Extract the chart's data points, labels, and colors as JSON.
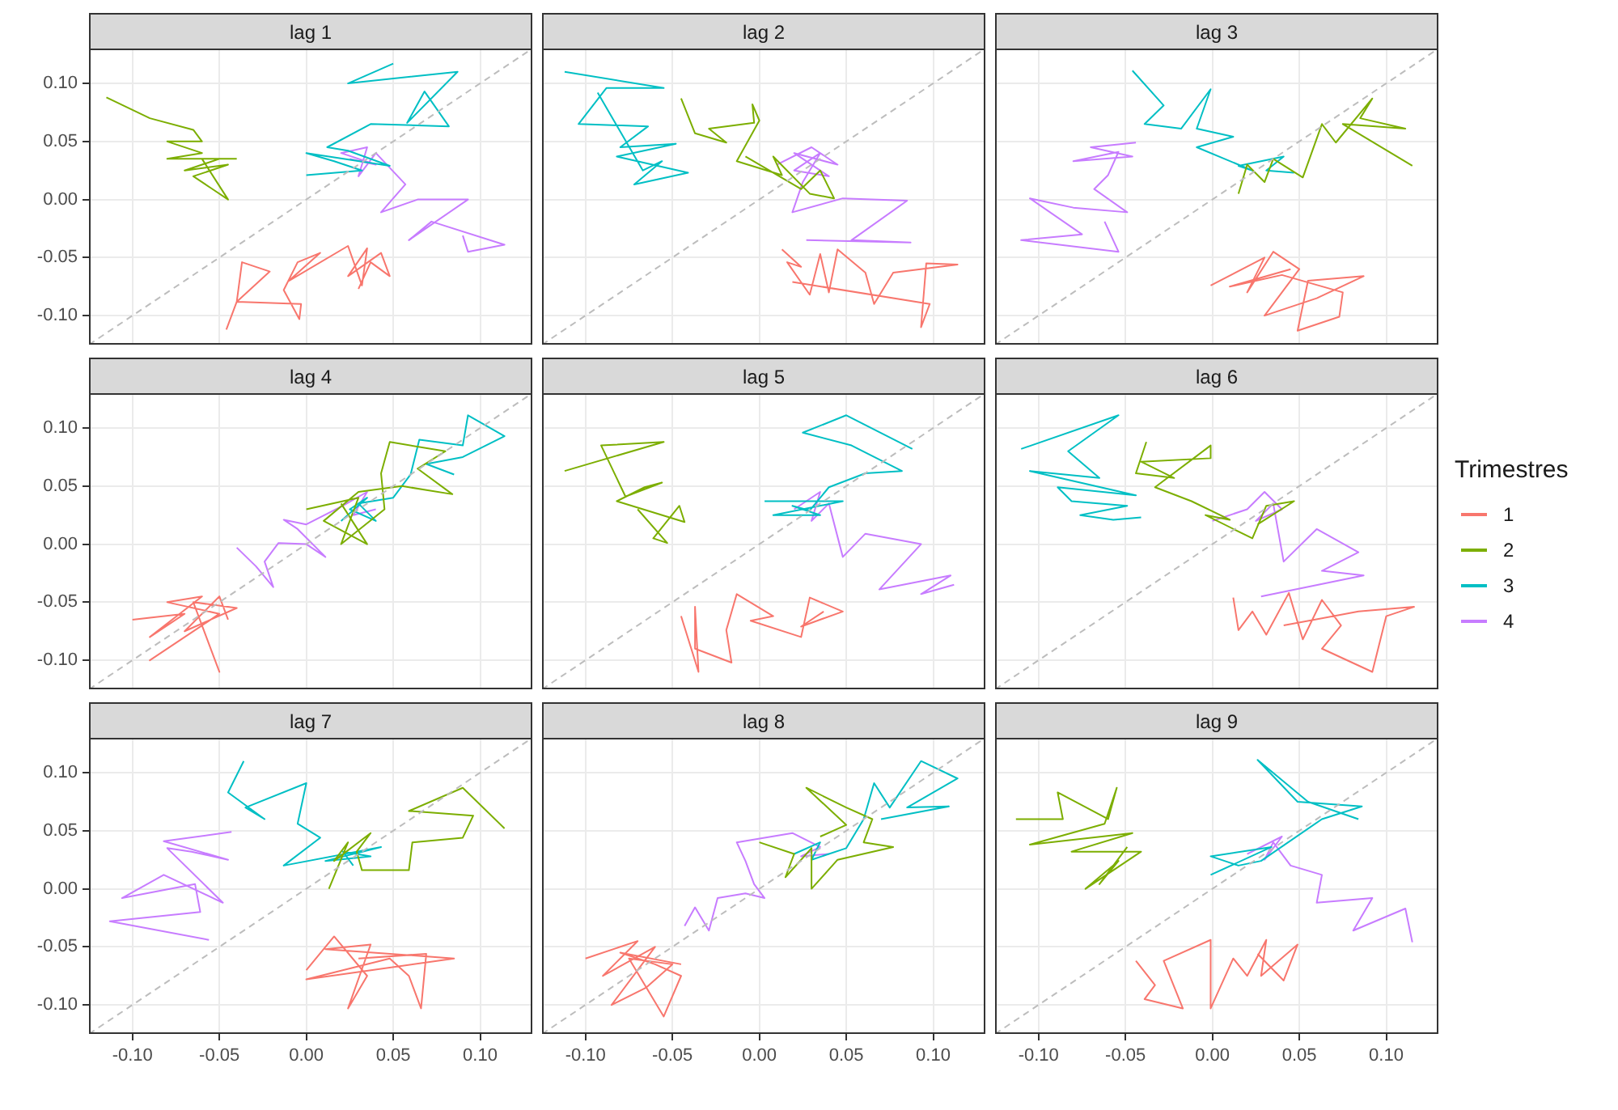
{
  "chart_data": [
    {
      "type": "line",
      "title": "lag 1",
      "xlim": [
        -0.125,
        0.13
      ],
      "ylim": [
        -0.125,
        0.13
      ],
      "xticks": [
        {
          "value": -0.1,
          "label": null
        },
        {
          "value": -0.05,
          "label": null
        },
        {
          "value": 0,
          "label": null
        },
        {
          "value": 0.05,
          "label": null
        },
        {
          "value": 0.1,
          "label": null
        }
      ],
      "yticks": [
        {
          "value": -0.1,
          "label": "-0.10"
        },
        {
          "value": -0.05,
          "label": "-0.05"
        },
        {
          "value": 0,
          "label": "0.00"
        },
        {
          "value": 0.05,
          "label": "0.05"
        },
        {
          "value": 0.1,
          "label": "0.10"
        }
      ],
      "grid": true,
      "tick_labels": "y",
      "series": [
        {
          "color": "#bdbdbd",
          "line_style": "dashed",
          "x": [
            -0.125,
            0.13
          ],
          "values": [
            -0.125,
            0.13
          ]
        },
        {
          "color": "#f8766d",
          "x": [
            -0.046,
            -0.04,
            -0.037,
            -0.021,
            -0.04,
            -0.003,
            -0.004,
            -0.013,
            -0.005,
            0.008,
            -0.01,
            0.024,
            0.032,
            0.035,
            0.024,
            0.043,
            0.048,
            0.037,
            0.03
          ],
          "values": [
            -0.112,
            -0.088,
            -0.054,
            -0.062,
            -0.088,
            -0.09,
            -0.103,
            -0.078,
            -0.054,
            -0.046,
            -0.07,
            -0.04,
            -0.074,
            -0.042,
            -0.066,
            -0.046,
            -0.066,
            -0.054,
            -0.077
          ]
        },
        {
          "color": "#7cae00",
          "x": [
            -0.115,
            -0.09,
            -0.065,
            -0.06,
            -0.08,
            -0.06,
            -0.08,
            -0.05,
            -0.07,
            -0.045,
            -0.065,
            -0.055,
            -0.045,
            -0.06,
            -0.04
          ],
          "values": [
            0.088,
            0.07,
            0.06,
            0.05,
            0.05,
            0.04,
            0.035,
            0.035,
            0.025,
            0.03,
            0.02,
            0.01,
            0.0,
            0.035,
            0.035
          ]
        },
        {
          "color": "#00bfc4",
          "x": [
            0.0,
            0.032,
            0.016,
            0.0,
            0.048,
            0.024,
            0.012,
            0.037,
            0.082,
            0.068,
            0.058,
            0.087,
            0.024,
            0.05
          ],
          "values": [
            0.021,
            0.025,
            0.033,
            0.04,
            0.029,
            0.042,
            0.045,
            0.065,
            0.063,
            0.093,
            0.066,
            0.11,
            0.1,
            0.117
          ]
        },
        {
          "color": "#c77cff",
          "x": [
            0.025,
            0.04,
            0.02,
            0.035,
            0.03,
            0.04,
            0.057,
            0.043,
            0.064,
            0.093,
            0.059,
            0.072,
            0.114,
            0.093,
            0.09
          ],
          "values": [
            0.035,
            0.03,
            0.04,
            0.045,
            0.02,
            0.04,
            0.013,
            -0.011,
            0.0,
            0.0,
            -0.035,
            -0.019,
            -0.039,
            -0.045,
            -0.031
          ]
        }
      ]
    },
    {
      "type": "line",
      "title": "lag 2",
      "xlim": [
        -0.125,
        0.13
      ],
      "ylim": [
        -0.125,
        0.13
      ],
      "xticks": [
        {
          "value": -0.1,
          "label": null
        },
        {
          "value": -0.05,
          "label": null
        },
        {
          "value": 0,
          "label": null
        },
        {
          "value": 0.05,
          "label": null
        },
        {
          "value": 0.1,
          "label": null
        }
      ],
      "yticks": [
        {
          "value": -0.1,
          "label": null
        },
        {
          "value": -0.05,
          "label": null
        },
        {
          "value": 0,
          "label": null
        },
        {
          "value": 0.05,
          "label": null
        },
        {
          "value": 0.1,
          "label": null
        }
      ],
      "grid": true,
      "tick_labels": false,
      "series": [
        {
          "color": "#bdbdbd",
          "line_style": "dashed",
          "x": [
            -0.125,
            0.13
          ],
          "values": [
            -0.125,
            0.13
          ]
        },
        {
          "color": "#f8766d",
          "x": [
            0.013,
            0.024,
            0.016,
            0.029,
            0.035,
            0.04,
            0.045,
            0.061,
            0.066,
            0.077,
            0.114,
            0.096,
            0.093,
            0.098,
            0.019
          ],
          "values": [
            -0.043,
            -0.058,
            -0.054,
            -0.082,
            -0.047,
            -0.08,
            -0.043,
            -0.063,
            -0.09,
            -0.063,
            -0.056,
            -0.055,
            -0.11,
            -0.09,
            -0.071
          ]
        },
        {
          "color": "#7cae00",
          "x": [
            -0.045,
            -0.037,
            -0.019,
            -0.029,
            -0.003,
            -0.004,
            0.0,
            -0.013,
            0.013,
            0.008,
            0.029,
            0.043,
            0.035,
            0.024,
            -0.008
          ],
          "values": [
            0.087,
            0.057,
            0.049,
            0.061,
            0.066,
            0.082,
            0.068,
            0.033,
            0.021,
            0.037,
            0.005,
            0.001,
            0.025,
            0.009,
            0.037
          ]
        },
        {
          "color": "#00bfc4",
          "x": [
            -0.112,
            -0.055,
            -0.088,
            -0.104,
            -0.064,
            -0.08,
            -0.048,
            -0.082,
            -0.041,
            -0.072,
            -0.056,
            -0.067,
            -0.093
          ],
          "values": [
            0.11,
            0.096,
            0.096,
            0.065,
            0.063,
            0.045,
            0.048,
            0.037,
            0.023,
            0.013,
            0.033,
            0.025,
            0.092
          ]
        },
        {
          "color": "#c77cff",
          "x": [
            0.01,
            0.03,
            0.045,
            0.02,
            0.04,
            0.02,
            0.035,
            0.025,
            0.019,
            0.048,
            0.085,
            0.053,
            0.087,
            0.027
          ],
          "values": [
            0.03,
            0.045,
            0.03,
            0.04,
            0.02,
            0.025,
            0.04,
            0.015,
            -0.011,
            0.001,
            -0.001,
            -0.035,
            -0.037,
            -0.035
          ]
        }
      ]
    },
    {
      "type": "line",
      "title": "lag 3",
      "xlim": [
        -0.125,
        0.13
      ],
      "ylim": [
        -0.125,
        0.13
      ],
      "xticks": [
        {
          "value": -0.1,
          "label": null
        },
        {
          "value": -0.05,
          "label": null
        },
        {
          "value": 0,
          "label": null
        },
        {
          "value": 0.05,
          "label": null
        },
        {
          "value": 0.1,
          "label": null
        }
      ],
      "yticks": [
        {
          "value": -0.1,
          "label": null
        },
        {
          "value": -0.05,
          "label": null
        },
        {
          "value": 0,
          "label": null
        },
        {
          "value": 0.05,
          "label": null
        },
        {
          "value": 0.1,
          "label": null
        }
      ],
      "grid": true,
      "tick_labels": false,
      "series": [
        {
          "color": "#bdbdbd",
          "line_style": "dashed",
          "x": [
            -0.125,
            0.13
          ],
          "values": [
            -0.125,
            0.13
          ]
        },
        {
          "color": "#f8766d",
          "x": [
            -0.001,
            0.03,
            0.02,
            0.035,
            0.05,
            0.03,
            0.06,
            0.087,
            0.055,
            0.049,
            0.073,
            0.075,
            0.04,
            0.01,
            0.045
          ],
          "values": [
            -0.074,
            -0.05,
            -0.08,
            -0.045,
            -0.06,
            -0.1,
            -0.085,
            -0.066,
            -0.07,
            -0.113,
            -0.101,
            -0.08,
            -0.065,
            -0.075,
            -0.06
          ]
        },
        {
          "color": "#7cae00",
          "x": [
            0.015,
            0.02,
            0.03,
            0.035,
            0.052,
            0.063,
            0.071,
            0.092,
            0.085,
            0.111,
            0.075,
            0.115
          ],
          "values": [
            0.005,
            0.03,
            0.015,
            0.035,
            0.019,
            0.065,
            0.049,
            0.087,
            0.07,
            0.061,
            0.065,
            0.029
          ]
        },
        {
          "color": "#00bfc4",
          "x": [
            -0.046,
            -0.028,
            -0.039,
            -0.018,
            -0.001,
            -0.009,
            0.012,
            -0.009,
            0.023,
            0.015,
            0.041,
            0.031,
            0.047
          ],
          "values": [
            0.111,
            0.081,
            0.065,
            0.061,
            0.095,
            0.061,
            0.054,
            0.045,
            0.025,
            0.029,
            0.037,
            0.025,
            0.023
          ]
        },
        {
          "color": "#c77cff",
          "x": [
            -0.044,
            -0.07,
            -0.046,
            -0.08,
            -0.054,
            -0.06,
            -0.068,
            -0.049,
            -0.08,
            -0.105,
            -0.075,
            -0.11,
            -0.054,
            -0.062
          ],
          "values": [
            0.049,
            0.045,
            0.037,
            0.033,
            0.041,
            0.021,
            0.009,
            -0.011,
            -0.007,
            0.001,
            -0.03,
            -0.035,
            -0.045,
            -0.019
          ]
        }
      ]
    },
    {
      "type": "line",
      "title": "lag 4",
      "xlim": [
        -0.125,
        0.13
      ],
      "ylim": [
        -0.125,
        0.13
      ],
      "xticks": [
        {
          "value": -0.1,
          "label": null
        },
        {
          "value": -0.05,
          "label": null
        },
        {
          "value": 0,
          "label": null
        },
        {
          "value": 0.05,
          "label": null
        },
        {
          "value": 0.1,
          "label": null
        }
      ],
      "yticks": [
        {
          "value": -0.1,
          "label": "-0.10"
        },
        {
          "value": -0.05,
          "label": "-0.05"
        },
        {
          "value": 0,
          "label": "0.00"
        },
        {
          "value": 0.05,
          "label": "0.05"
        },
        {
          "value": 0.1,
          "label": "0.10"
        }
      ],
      "grid": true,
      "tick_labels": "y",
      "series": [
        {
          "color": "#bdbdbd",
          "line_style": "dashed",
          "x": [
            -0.125,
            0.13
          ],
          "values": [
            -0.125,
            0.13
          ]
        },
        {
          "color": "#f8766d",
          "x": [
            -0.1,
            -0.07,
            -0.09,
            -0.06,
            -0.08,
            -0.05,
            -0.075,
            -0.09,
            -0.06,
            -0.05,
            -0.065,
            -0.04,
            -0.07,
            -0.05,
            -0.045
          ],
          "values": [
            -0.065,
            -0.06,
            -0.08,
            -0.045,
            -0.05,
            -0.06,
            -0.085,
            -0.1,
            -0.07,
            -0.11,
            -0.05,
            -0.055,
            -0.075,
            -0.045,
            -0.065
          ]
        },
        {
          "color": "#7cae00",
          "x": [
            0.0,
            0.03,
            0.02,
            0.045,
            0.043,
            0.048,
            0.08,
            0.064,
            0.084,
            0.055,
            0.03,
            0.01,
            0.035,
            0.02
          ],
          "values": [
            0.03,
            0.04,
            0.0,
            0.03,
            0.061,
            0.088,
            0.08,
            0.065,
            0.043,
            0.05,
            0.045,
            0.02,
            0.0,
            0.035
          ]
        },
        {
          "color": "#00bfc4",
          "x": [
            0.02,
            0.035,
            0.025,
            0.04,
            0.03,
            0.05,
            0.06,
            0.065,
            0.09,
            0.093,
            0.114,
            0.09,
            0.069,
            0.085
          ],
          "values": [
            0.02,
            0.04,
            0.03,
            0.02,
            0.035,
            0.04,
            0.06,
            0.09,
            0.085,
            0.111,
            0.093,
            0.075,
            0.069,
            0.06
          ]
        },
        {
          "color": "#c77cff",
          "x": [
            -0.04,
            -0.029,
            -0.019,
            -0.024,
            -0.016,
            0.0,
            0.011,
            -0.005,
            -0.013,
            0.0,
            0.021,
            0.035,
            0.027,
            0.04
          ],
          "values": [
            -0.003,
            -0.019,
            -0.037,
            -0.015,
            0.001,
            0.0,
            -0.011,
            0.013,
            0.021,
            0.017,
            0.033,
            0.045,
            0.025,
            0.03
          ]
        }
      ]
    },
    {
      "type": "line",
      "title": "lag 5",
      "xlim": [
        -0.125,
        0.13
      ],
      "ylim": [
        -0.125,
        0.13
      ],
      "xticks": [
        {
          "value": -0.1,
          "label": null
        },
        {
          "value": -0.05,
          "label": null
        },
        {
          "value": 0,
          "label": null
        },
        {
          "value": 0.05,
          "label": null
        },
        {
          "value": 0.1,
          "label": null
        }
      ],
      "yticks": [
        {
          "value": -0.1,
          "label": null
        },
        {
          "value": -0.05,
          "label": null
        },
        {
          "value": 0,
          "label": null
        },
        {
          "value": 0.05,
          "label": null
        },
        {
          "value": 0.1,
          "label": null
        }
      ],
      "grid": true,
      "tick_labels": false,
      "series": [
        {
          "color": "#bdbdbd",
          "line_style": "dashed",
          "x": [
            -0.125,
            0.13
          ],
          "values": [
            -0.125,
            0.13
          ]
        },
        {
          "color": "#f8766d",
          "x": [
            -0.045,
            -0.035,
            -0.037,
            -0.037,
            -0.016,
            -0.019,
            -0.013,
            0.008,
            -0.005,
            0.024,
            0.029,
            0.048,
            0.024,
            0.037
          ],
          "values": [
            -0.062,
            -0.11,
            -0.054,
            -0.09,
            -0.102,
            -0.074,
            -0.043,
            -0.062,
            -0.066,
            -0.08,
            -0.046,
            -0.058,
            -0.071,
            -0.058
          ]
        },
        {
          "color": "#7cae00",
          "x": [
            -0.112,
            -0.055,
            -0.091,
            -0.077,
            -0.056,
            -0.066,
            -0.082,
            -0.043,
            -0.046,
            -0.061,
            -0.053,
            -0.07
          ],
          "values": [
            0.063,
            0.088,
            0.085,
            0.041,
            0.053,
            0.049,
            0.037,
            0.019,
            0.033,
            0.005,
            0.001,
            0.03
          ]
        },
        {
          "color": "#00bfc4",
          "x": [
            0.003,
            0.048,
            0.008,
            0.035,
            0.019,
            0.029,
            0.04,
            0.061,
            0.082,
            0.053,
            0.025,
            0.05,
            0.088
          ],
          "values": [
            0.037,
            0.037,
            0.025,
            0.025,
            0.033,
            0.029,
            0.049,
            0.061,
            0.063,
            0.085,
            0.096,
            0.111,
            0.082
          ]
        },
        {
          "color": "#c77cff",
          "x": [
            0.02,
            0.035,
            0.03,
            0.04,
            0.048,
            0.061,
            0.093,
            0.069,
            0.11,
            0.093,
            0.112
          ],
          "values": [
            0.03,
            0.045,
            0.02,
            0.035,
            -0.011,
            0.009,
            0.0,
            -0.039,
            -0.027,
            -0.043,
            -0.035
          ]
        }
      ]
    },
    {
      "type": "line",
      "title": "lag 6",
      "xlim": [
        -0.125,
        0.13
      ],
      "ylim": [
        -0.125,
        0.13
      ],
      "xticks": [
        {
          "value": -0.1,
          "label": null
        },
        {
          "value": -0.05,
          "label": null
        },
        {
          "value": 0,
          "label": null
        },
        {
          "value": 0.05,
          "label": null
        },
        {
          "value": 0.1,
          "label": null
        }
      ],
      "yticks": [
        {
          "value": -0.1,
          "label": null
        },
        {
          "value": -0.05,
          "label": null
        },
        {
          "value": 0,
          "label": null
        },
        {
          "value": 0.05,
          "label": null
        },
        {
          "value": 0.1,
          "label": null
        }
      ],
      "grid": true,
      "tick_labels": false,
      "legend": "right",
      "legend_title": "Trimestres",
      "series": [
        {
          "color": "#bdbdbd",
          "line_style": "dashed",
          "x": [
            -0.125,
            0.13
          ],
          "values": [
            -0.125,
            0.13
          ]
        },
        {
          "name": "1",
          "color": "#f8766d",
          "x": [
            0.012,
            0.015,
            0.023,
            0.031,
            0.044,
            0.052,
            0.063,
            0.074,
            0.063,
            0.092,
            0.1,
            0.116,
            0.084,
            0.041
          ],
          "values": [
            -0.046,
            -0.074,
            -0.058,
            -0.078,
            -0.042,
            -0.082,
            -0.048,
            -0.07,
            -0.09,
            -0.11,
            -0.062,
            -0.054,
            -0.058,
            -0.07
          ]
        },
        {
          "name": "2",
          "color": "#7cae00",
          "x": [
            -0.038,
            -0.044,
            -0.022,
            -0.041,
            -0.001,
            -0.001,
            -0.033,
            -0.012,
            0.01,
            -0.004,
            0.023,
            0.031,
            0.047,
            0.026
          ],
          "values": [
            0.088,
            0.061,
            0.057,
            0.071,
            0.074,
            0.085,
            0.049,
            0.037,
            0.021,
            0.025,
            0.005,
            0.033,
            0.037,
            0.017
          ]
        },
        {
          "name": "3",
          "color": "#00bfc4",
          "x": [
            -0.11,
            -0.054,
            -0.083,
            -0.065,
            -0.105,
            -0.044,
            -0.089,
            -0.081,
            -0.049,
            -0.076,
            -0.057,
            -0.041
          ],
          "values": [
            0.082,
            0.111,
            0.08,
            0.057,
            0.063,
            0.042,
            0.049,
            0.037,
            0.033,
            0.025,
            0.021,
            0.023
          ]
        },
        {
          "name": "4",
          "color": "#c77cff",
          "x": [
            0.0,
            0.02,
            0.03,
            0.04,
            0.025,
            0.035,
            0.041,
            0.06,
            0.084,
            0.063,
            0.087,
            0.028
          ],
          "values": [
            0.02,
            0.03,
            0.045,
            0.03,
            0.02,
            0.035,
            -0.015,
            0.013,
            -0.007,
            -0.023,
            -0.027,
            -0.045
          ]
        }
      ]
    },
    {
      "type": "line",
      "title": "lag 7",
      "xlim": [
        -0.125,
        0.13
      ],
      "ylim": [
        -0.125,
        0.13
      ],
      "xticks": [
        {
          "value": -0.1,
          "label": "-0.10"
        },
        {
          "value": -0.05,
          "label": "-0.05"
        },
        {
          "value": 0,
          "label": "0.00"
        },
        {
          "value": 0.05,
          "label": "0.05"
        },
        {
          "value": 0.1,
          "label": "0.10"
        }
      ],
      "yticks": [
        {
          "value": -0.1,
          "label": "-0.10"
        },
        {
          "value": -0.05,
          "label": "-0.05"
        },
        {
          "value": 0,
          "label": "0.00"
        },
        {
          "value": 0.05,
          "label": "0.05"
        },
        {
          "value": 0.1,
          "label": "0.10"
        }
      ],
      "grid": true,
      "series": [
        {
          "color": "#bdbdbd",
          "line_style": "dashed",
          "x": [
            -0.125,
            0.13
          ],
          "values": [
            -0.125,
            0.13
          ]
        },
        {
          "color": "#f8766d",
          "x": [
            0.0,
            0.016,
            0.035,
            0.024,
            0.037,
            0.011,
            0.085,
            0.0,
            0.048,
            0.059,
            0.066,
            0.069,
            0.03
          ],
          "values": [
            -0.07,
            -0.041,
            -0.075,
            -0.103,
            -0.048,
            -0.052,
            -0.06,
            -0.078,
            -0.06,
            -0.075,
            -0.103,
            -0.056,
            -0.06
          ]
        },
        {
          "color": "#7cae00",
          "x": [
            0.013,
            0.024,
            0.016,
            0.037,
            0.029,
            0.032,
            0.059,
            0.061,
            0.09,
            0.096,
            0.059,
            0.09,
            0.114
          ],
          "values": [
            0.0,
            0.04,
            0.024,
            0.048,
            0.032,
            0.016,
            0.016,
            0.04,
            0.044,
            0.063,
            0.067,
            0.087,
            0.052
          ]
        },
        {
          "color": "#00bfc4",
          "x": [
            -0.036,
            -0.045,
            -0.024,
            -0.035,
            0.0,
            -0.005,
            0.008,
            -0.013,
            0.043,
            0.011,
            0.037,
            0.021,
            0.027
          ],
          "values": [
            0.11,
            0.083,
            0.06,
            0.07,
            0.091,
            0.056,
            0.044,
            0.02,
            0.036,
            0.024,
            0.028,
            0.032,
            0.02
          ]
        },
        {
          "color": "#c77cff",
          "x": [
            -0.043,
            -0.082,
            -0.045,
            -0.066,
            -0.08,
            -0.048,
            -0.082,
            -0.106,
            -0.064,
            -0.061,
            -0.113,
            -0.056
          ],
          "values": [
            0.049,
            0.041,
            0.025,
            0.032,
            0.035,
            -0.012,
            0.012,
            -0.008,
            0.004,
            -0.02,
            -0.028,
            -0.044
          ]
        }
      ]
    },
    {
      "type": "line",
      "title": "lag 8",
      "xlim": [
        -0.125,
        0.13
      ],
      "ylim": [
        -0.125,
        0.13
      ],
      "xticks": [
        {
          "value": -0.1,
          "label": "-0.10"
        },
        {
          "value": -0.05,
          "label": "-0.05"
        },
        {
          "value": 0,
          "label": "0.00"
        },
        {
          "value": 0.05,
          "label": "0.05"
        },
        {
          "value": 0.1,
          "label": "0.10"
        }
      ],
      "yticks": [
        {
          "value": -0.1,
          "label": null
        },
        {
          "value": -0.05,
          "label": null
        },
        {
          "value": 0,
          "label": null
        },
        {
          "value": 0.05,
          "label": null
        },
        {
          "value": 0.1,
          "label": null
        }
      ],
      "grid": true,
      "tick_labels": "x",
      "series": [
        {
          "color": "#bdbdbd",
          "line_style": "dashed",
          "x": [
            -0.125,
            0.13
          ],
          "values": [
            -0.125,
            0.13
          ]
        },
        {
          "color": "#f8766d",
          "x": [
            -0.1,
            -0.07,
            -0.09,
            -0.06,
            -0.085,
            -0.065,
            -0.05,
            -0.075,
            -0.055,
            -0.045,
            -0.06,
            -0.08,
            -0.045
          ],
          "values": [
            -0.06,
            -0.045,
            -0.075,
            -0.05,
            -0.1,
            -0.085,
            -0.065,
            -0.06,
            -0.11,
            -0.075,
            -0.065,
            -0.055,
            -0.065
          ]
        },
        {
          "color": "#7cae00",
          "x": [
            0.0,
            0.02,
            0.015,
            0.03,
            0.03,
            0.045,
            0.077,
            0.06,
            0.065,
            0.05,
            0.027,
            0.05,
            0.035
          ],
          "values": [
            0.04,
            0.03,
            0.01,
            0.035,
            0.0,
            0.025,
            0.036,
            0.04,
            0.06,
            0.07,
            0.087,
            0.055,
            0.045
          ]
        },
        {
          "color": "#00bfc4",
          "x": [
            0.02,
            0.035,
            0.03,
            0.05,
            0.06,
            0.066,
            0.075,
            0.093,
            0.114,
            0.085,
            0.109,
            0.07
          ],
          "values": [
            0.03,
            0.04,
            0.025,
            0.035,
            0.06,
            0.091,
            0.07,
            0.11,
            0.095,
            0.07,
            0.071,
            0.06
          ]
        },
        {
          "color": "#c77cff",
          "x": [
            -0.043,
            -0.037,
            -0.029,
            -0.024,
            -0.008,
            0.003,
            -0.003,
            -0.008,
            -0.013,
            0.019,
            0.035,
            0.024,
            0.04
          ],
          "values": [
            -0.032,
            -0.016,
            -0.036,
            -0.008,
            -0.004,
            -0.008,
            0.004,
            0.024,
            0.04,
            0.048,
            0.036,
            0.028,
            0.03
          ]
        }
      ]
    },
    {
      "type": "line",
      "title": "lag 9",
      "xlim": [
        -0.125,
        0.13
      ],
      "ylim": [
        -0.125,
        0.13
      ],
      "xticks": [
        {
          "value": -0.1,
          "label": "-0.10"
        },
        {
          "value": -0.05,
          "label": "-0.05"
        },
        {
          "value": 0,
          "label": "0.00"
        },
        {
          "value": 0.05,
          "label": "0.05"
        },
        {
          "value": 0.1,
          "label": "0.10"
        }
      ],
      "yticks": [
        {
          "value": -0.1,
          "label": null
        },
        {
          "value": -0.05,
          "label": null
        },
        {
          "value": 0,
          "label": null
        },
        {
          "value": 0.05,
          "label": null
        },
        {
          "value": 0.1,
          "label": null
        }
      ],
      "grid": true,
      "tick_labels": "x",
      "series": [
        {
          "color": "#bdbdbd",
          "line_style": "dashed",
          "x": [
            -0.125,
            0.13
          ],
          "values": [
            -0.125,
            0.13
          ]
        },
        {
          "color": "#f8766d",
          "x": [
            -0.044,
            -0.033,
            -0.039,
            -0.017,
            -0.028,
            -0.001,
            -0.001,
            0.012,
            0.02,
            0.031,
            0.028,
            0.049,
            0.041,
            0.026
          ],
          "values": [
            -0.062,
            -0.083,
            -0.095,
            -0.103,
            -0.062,
            -0.044,
            -0.103,
            -0.06,
            -0.075,
            -0.044,
            -0.075,
            -0.048,
            -0.079,
            -0.056
          ]
        },
        {
          "color": "#7cae00",
          "x": [
            -0.113,
            -0.086,
            -0.089,
            -0.06,
            -0.055,
            -0.062,
            -0.105,
            -0.046,
            -0.081,
            -0.041,
            -0.073,
            -0.054,
            -0.065,
            -0.049
          ],
          "values": [
            0.06,
            0.06,
            0.083,
            0.06,
            0.087,
            0.056,
            0.038,
            0.048,
            0.032,
            0.032,
            0.0,
            0.024,
            0.004,
            0.036
          ]
        },
        {
          "color": "#00bfc4",
          "x": [
            -0.001,
            0.034,
            -0.001,
            0.015,
            0.028,
            0.063,
            0.086,
            0.049,
            0.026,
            0.055,
            0.084
          ],
          "values": [
            0.012,
            0.036,
            0.028,
            0.02,
            0.024,
            0.06,
            0.071,
            0.075,
            0.111,
            0.075,
            0.06
          ]
        },
        {
          "color": "#c77cff",
          "x": [
            0.02,
            0.04,
            0.03,
            0.035,
            0.045,
            0.063,
            0.06,
            0.092,
            0.081,
            0.111,
            0.115
          ],
          "values": [
            0.03,
            0.045,
            0.025,
            0.04,
            0.02,
            0.012,
            -0.012,
            -0.008,
            -0.036,
            -0.017,
            -0.046
          ]
        }
      ]
    }
  ]
}
